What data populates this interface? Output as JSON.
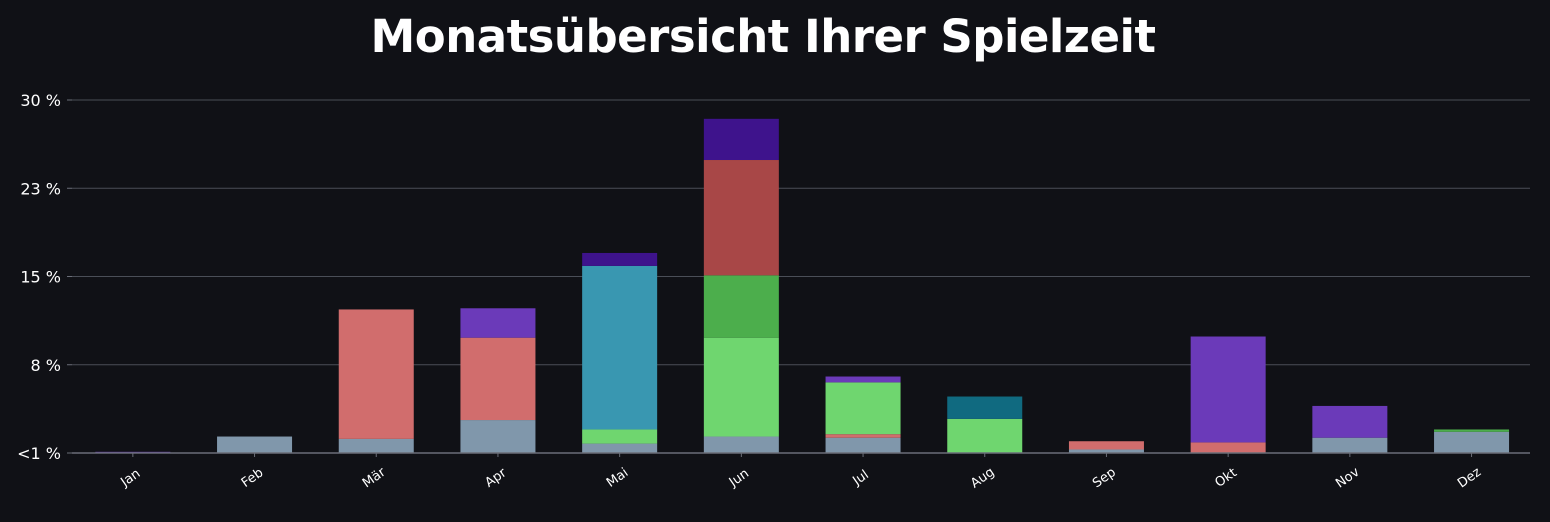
{
  "chart_data": {
    "type": "bar",
    "stacked": true,
    "title": "Monatsübersicht Ihrer Spielzeit",
    "xlabel": "",
    "ylabel": "",
    "y_ticks": [
      "<1 %",
      "8 %",
      "15 %",
      "23 %",
      "30 %"
    ],
    "y_tick_values": [
      0,
      7.5,
      15,
      22.5,
      30
    ],
    "ylim": [
      0,
      30
    ],
    "grid": true,
    "legend": "none",
    "categories": [
      "Jan",
      "Feb",
      "Mär",
      "Apr",
      "Mai",
      "Jun",
      "Jul",
      "Aug",
      "Sep",
      "Okt",
      "Nov",
      "Dez"
    ],
    "series": [
      {
        "color": "#8097ab",
        "values": [
          0,
          1.4,
          1.2,
          2.8,
          0.8,
          1.4,
          1.3,
          0,
          0.3,
          0,
          1.3,
          1.8
        ]
      },
      {
        "color": "#6fd66f",
        "values": [
          0,
          0,
          0,
          0,
          1.2,
          8.4,
          0,
          2.9,
          0,
          0,
          0,
          0
        ]
      },
      {
        "color": "#4cae4c",
        "values": [
          0,
          0,
          0,
          0,
          0,
          5.3,
          0,
          0,
          0,
          0,
          0,
          0.2
        ]
      },
      {
        "color": "#d16d6d",
        "values": [
          0,
          0,
          11.0,
          7.0,
          0,
          0,
          0.3,
          0,
          0.7,
          0.9,
          0,
          0
        ]
      },
      {
        "color": "#a84747",
        "values": [
          0,
          0,
          0,
          0,
          0,
          9.8,
          0,
          0,
          0,
          0,
          0,
          0
        ]
      },
      {
        "color": "#6fd66f",
        "values": [
          0,
          0,
          0,
          0,
          0,
          0,
          4.4,
          0,
          0,
          0,
          0,
          0
        ]
      },
      {
        "color": "#3997b1",
        "values": [
          0,
          0,
          0,
          0,
          13.9,
          0,
          0,
          0,
          0,
          0,
          0,
          0
        ]
      },
      {
        "color": "#106a80",
        "values": [
          0,
          0,
          0,
          0,
          0,
          0,
          0,
          1.9,
          0,
          0,
          0,
          0
        ]
      },
      {
        "color": "#6b3ab9",
        "values": [
          0.1,
          0,
          0,
          2.5,
          0,
          0,
          0.5,
          0,
          0,
          9.0,
          2.7,
          0
        ]
      },
      {
        "color": "#3e138c",
        "values": [
          0,
          0,
          0,
          0,
          1.1,
          3.5,
          0,
          0,
          0,
          0,
          0,
          0
        ]
      }
    ],
    "colors": {
      "background": "#101116",
      "grid": "#4a4e57",
      "axis": "#6a6e78",
      "text": "#ffffff"
    }
  }
}
